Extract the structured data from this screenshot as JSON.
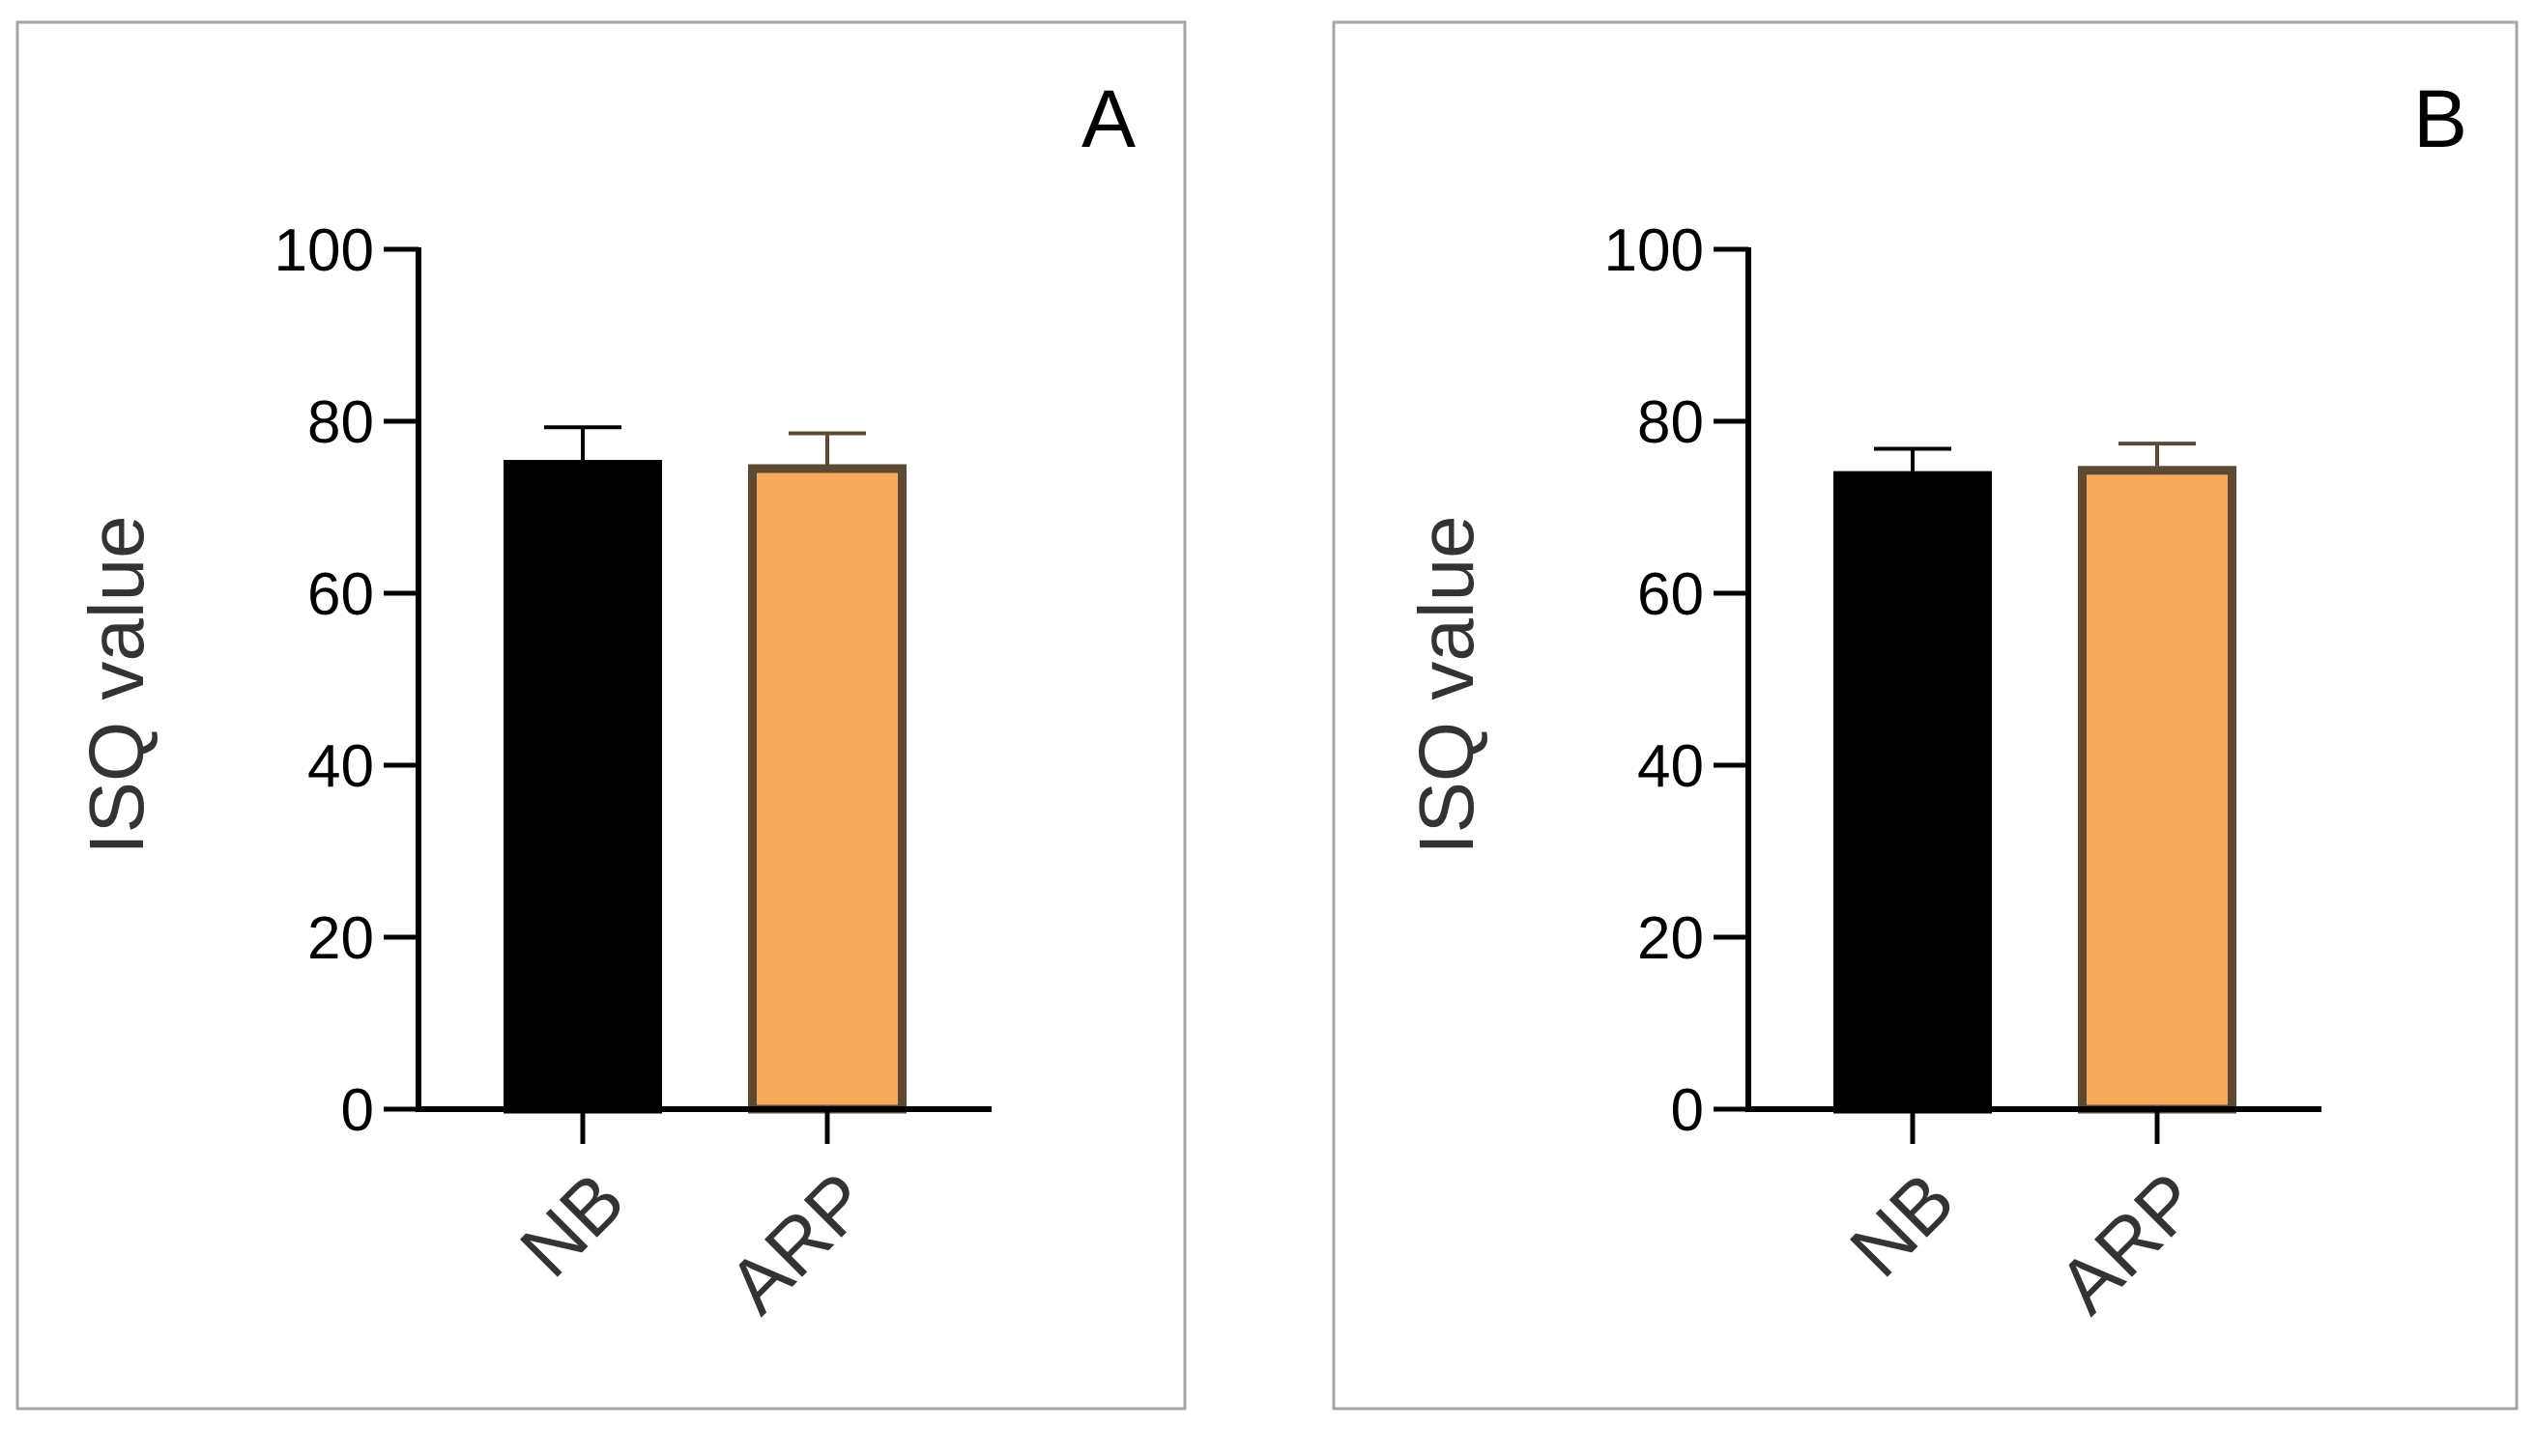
{
  "chart_data": [
    {
      "type": "bar",
      "panel_label": "A",
      "categories": [
        "NB",
        "ARP"
      ],
      "values": [
        75.5,
        75.0
      ],
      "errors": [
        3.8,
        3.6
      ],
      "ylabel": "ISQ value",
      "ylim": [
        0,
        100
      ],
      "yticks": [
        0,
        20,
        40,
        60,
        80,
        100
      ],
      "grid": false,
      "bar_fills": [
        "#000000",
        "#F9A95B"
      ],
      "bar_edges": [
        "#000000",
        "#5C4A34"
      ]
    },
    {
      "type": "bar",
      "panel_label": "B",
      "categories": [
        "NB",
        "ARP"
      ],
      "values": [
        74.2,
        74.8
      ],
      "errors": [
        2.6,
        2.6
      ],
      "ylabel": "ISQ value",
      "ylim": [
        0,
        100
      ],
      "yticks": [
        0,
        20,
        40,
        60,
        80,
        100
      ],
      "grid": false,
      "bar_fills": [
        "#000000",
        "#F9A95B"
      ],
      "bar_edges": [
        "#000000",
        "#5C4A34"
      ]
    }
  ],
  "colors": {
    "panel_border": "#A6A6A6",
    "axis": "#000000",
    "label_text": "#333333"
  }
}
